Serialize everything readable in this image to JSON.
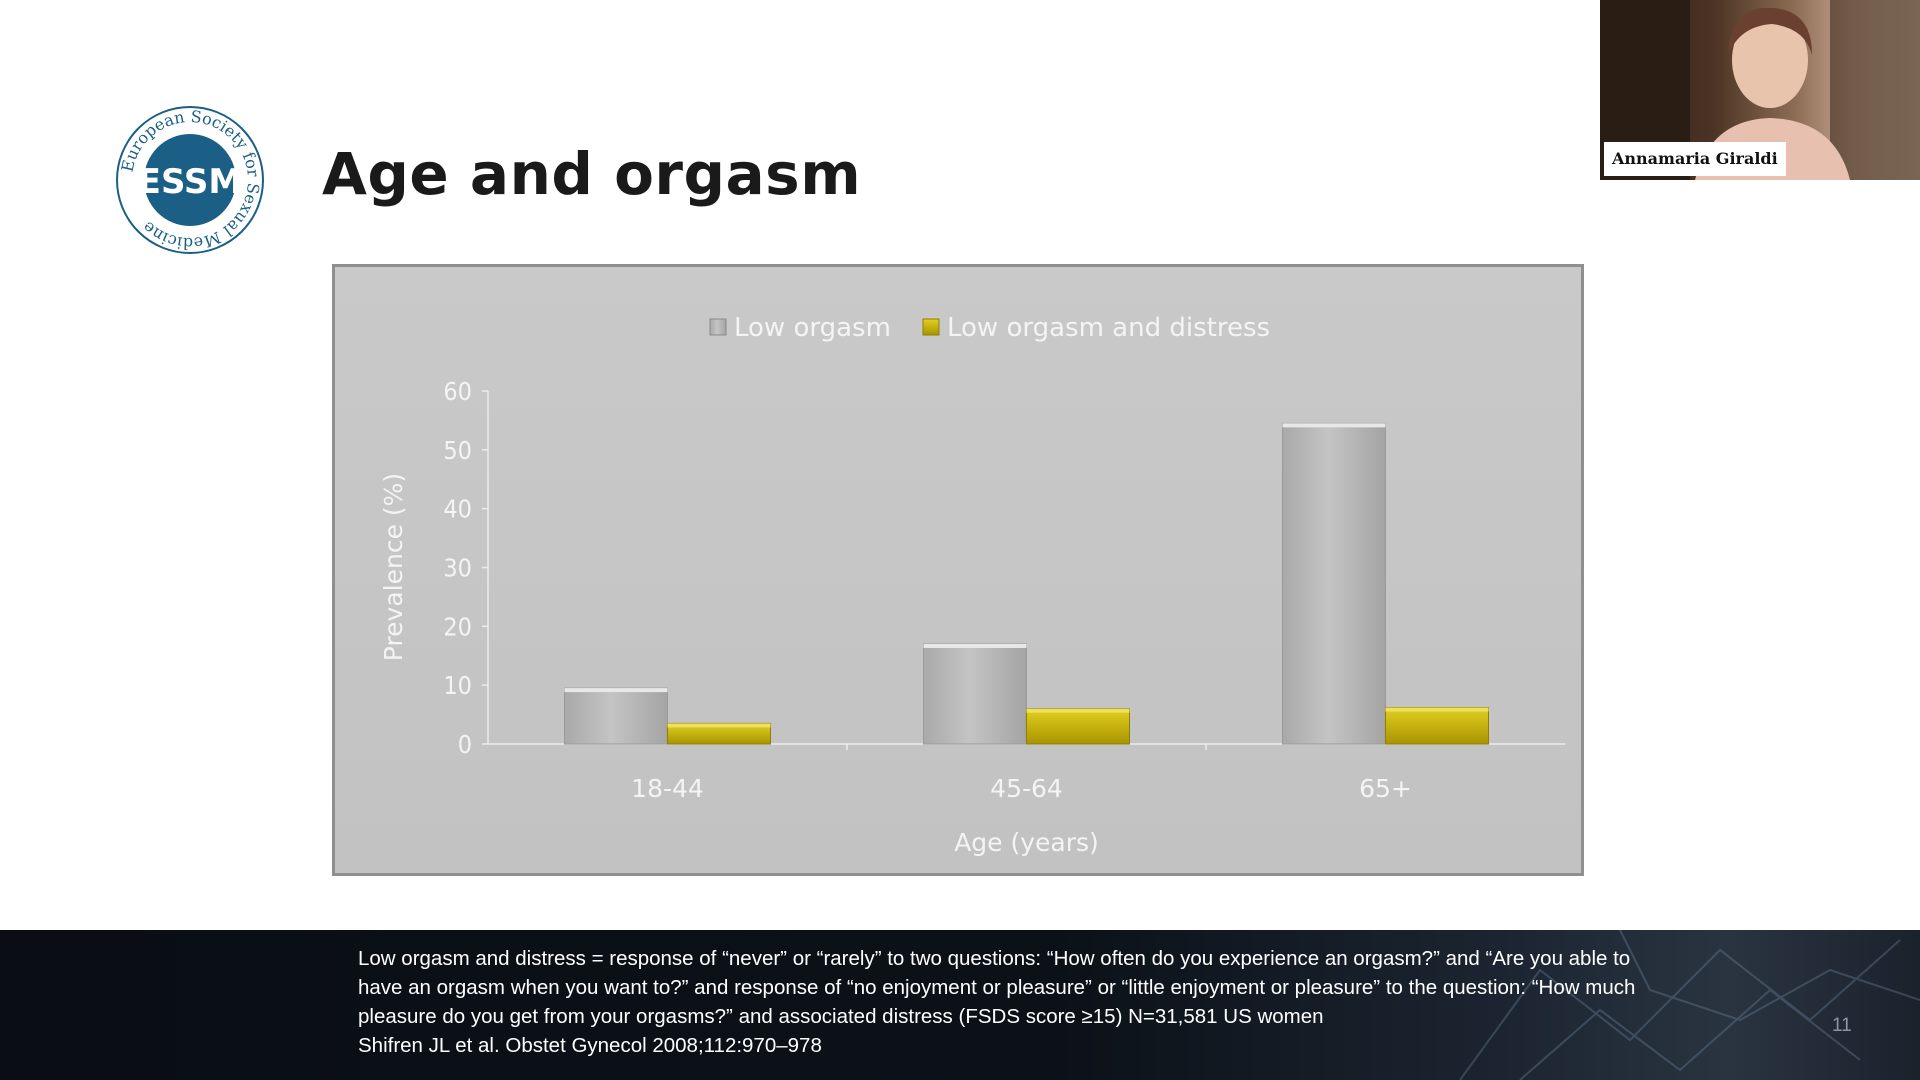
{
  "slide": {
    "title": "Age and orgasm",
    "logo_text": "European Society for Sexual Medicine",
    "logo_mark": "ESSM",
    "page_number": "11"
  },
  "presenter": {
    "name": "Annamaria Giraldi"
  },
  "footnote": {
    "lines": [
      "Low orgasm and distress = response of “never” or “rarely” to two questions: “How often do you experience an orgasm?” and “Are you able to have an orgasm when you want to?” and response of “no enjoyment or pleasure” or “little enjoyment or pleasure” to the question: “How much pleasure do you get from your orgasms?” and associated distress (FSDS score ≥15) N=31,581 US women",
      "Shifren JL et al. Obstet Gynecol 2008;112:970–978"
    ]
  },
  "colors": {
    "brand": "#1b5f86",
    "bar_gray": "#b8b8b8",
    "bar_yellow": "#c8b400",
    "chart_bg": "#c6c6c6",
    "axis_text": "#f4f4f4"
  },
  "chart_data": {
    "type": "bar",
    "title": "",
    "categories": [
      "18-44",
      "45-64",
      "65+"
    ],
    "series": [
      {
        "name": "Low orgasm",
        "values": [
          9.5,
          17,
          54.5
        ]
      },
      {
        "name": "Low orgasm and distress",
        "values": [
          3.5,
          6,
          6.2
        ]
      }
    ],
    "xlabel": "Age (years)",
    "ylabel": "Prevalence (%)",
    "ylim": [
      0,
      60
    ],
    "yticks": [
      "0",
      "10",
      "20",
      "30",
      "40",
      "50",
      "60"
    ],
    "legend_position": "top-center",
    "grid": false
  }
}
